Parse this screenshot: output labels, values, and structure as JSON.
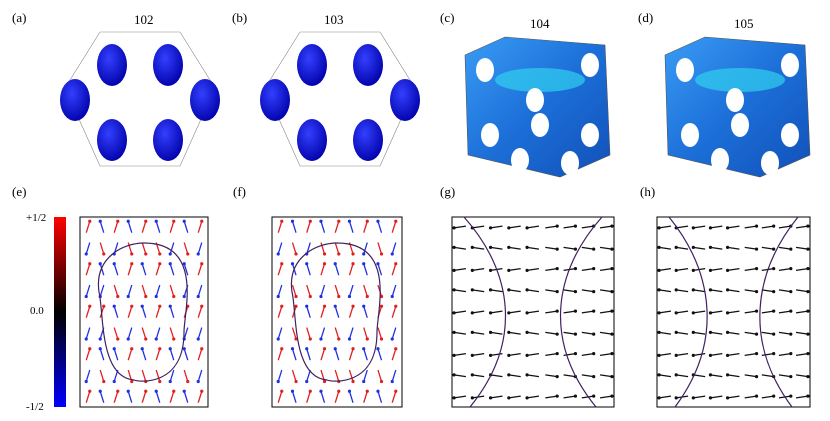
{
  "top_panels": [
    {
      "label": "(a)",
      "title": "102"
    },
    {
      "label": "(b)",
      "title": "103"
    },
    {
      "label": "(c)",
      "title": "104"
    },
    {
      "label": "(d)",
      "title": "105"
    }
  ],
  "bottom_panels": [
    {
      "label": "(e)"
    },
    {
      "label": "(f)"
    },
    {
      "label": "(g)"
    },
    {
      "label": "(h)"
    }
  ],
  "colorbar": {
    "top_label": "+1/2",
    "mid_label": "0.0",
    "bottom_label": "-1/2"
  }
}
